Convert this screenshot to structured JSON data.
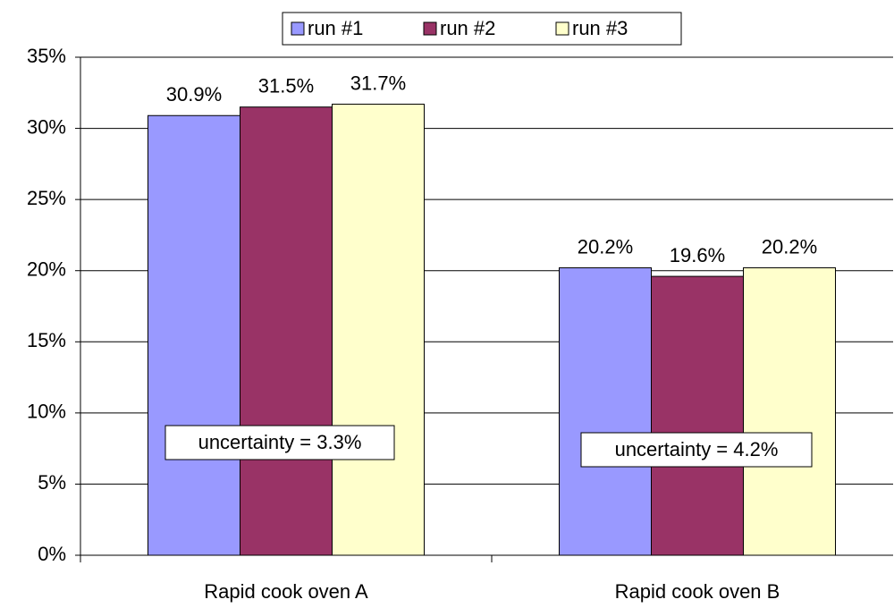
{
  "chart_data": {
    "type": "bar",
    "categories": [
      "Rapid cook oven A",
      "Rapid cook oven B"
    ],
    "series": [
      {
        "name": "run #1",
        "color": "#9999ff",
        "values": [
          30.9,
          20.2
        ],
        "value_labels": [
          "30.9%",
          "20.2%"
        ]
      },
      {
        "name": "run #2",
        "color": "#993366",
        "values": [
          31.5,
          19.6
        ],
        "value_labels": [
          "31.5%",
          "19.6%"
        ]
      },
      {
        "name": "run #3",
        "color": "#ffffcc",
        "values": [
          31.7,
          20.2
        ],
        "value_labels": [
          "31.7%",
          "20.2%"
        ]
      }
    ],
    "ylim": [
      0,
      35
    ],
    "yticks": [
      {
        "value": 0,
        "label": "0%"
      },
      {
        "value": 5,
        "label": "5%"
      },
      {
        "value": 10,
        "label": "10%"
      },
      {
        "value": 15,
        "label": "15%"
      },
      {
        "value": 20,
        "label": "20%"
      },
      {
        "value": 25,
        "label": "25%"
      },
      {
        "value": 30,
        "label": "30%"
      },
      {
        "value": 35,
        "label": "35%"
      }
    ],
    "grid": true,
    "legend": "top",
    "annotations": [
      "uncertainty = 3.3%",
      "uncertainty = 4.2%"
    ]
  }
}
